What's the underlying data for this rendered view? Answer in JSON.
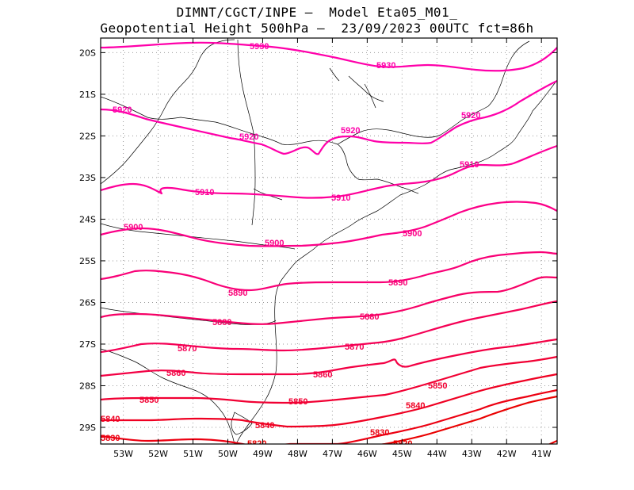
{
  "title": {
    "line1": "DIMNT/CGCT/INPE –  Model Eta05_M01_",
    "line2": "Geopotential Height 500hPa –  23/09/2023 00UTC fct=86h"
  },
  "axes": {
    "lon_labels": [
      "53W",
      "52W",
      "51W",
      "50W",
      "49W",
      "48W",
      "47W",
      "46W",
      "45W",
      "44W",
      "43W",
      "42W",
      "41W"
    ],
    "lon_values": [
      -53,
      -52,
      -51,
      -50,
      -49,
      -48,
      -47,
      -46,
      -45,
      -44,
      -43,
      -42,
      -41
    ],
    "lat_labels": [
      "20S",
      "21S",
      "22S",
      "23S",
      "24S",
      "25S",
      "26S",
      "27S",
      "28S",
      "29S"
    ],
    "lat_values": [
      -20,
      -21,
      -22,
      -23,
      -24,
      -25,
      -26,
      -27,
      -28,
      -29
    ],
    "lon_range": [
      -53.65,
      -40.55
    ],
    "lat_range": [
      -29.4,
      -19.65
    ],
    "grid": "dotted"
  },
  "contour_levels": [
    {
      "value": 5930,
      "label": "5930",
      "color": "#ff00aa"
    },
    {
      "value": 5920,
      "label": "5920",
      "color": "#ff00aa"
    },
    {
      "value": 5910,
      "label": "5910",
      "color": "#fe0099"
    },
    {
      "value": 5900,
      "label": "5900",
      "color": "#fc0088"
    },
    {
      "value": 5890,
      "label": "5890",
      "color": "#f90077"
    },
    {
      "value": 5880,
      "label": "5880",
      "color": "#f70066"
    },
    {
      "value": 5870,
      "label": "5870",
      "color": "#f50055"
    },
    {
      "value": 5860,
      "label": "5860",
      "color": "#f30044"
    },
    {
      "value": 5850,
      "label": "5850",
      "color": "#f10033"
    },
    {
      "value": 5840,
      "label": "5840",
      "color": "#ef0022"
    },
    {
      "value": 5830,
      "label": "5830",
      "color": "#ec0011"
    },
    {
      "value": 5820,
      "label": "5820",
      "color": "#ea0000"
    }
  ]
}
